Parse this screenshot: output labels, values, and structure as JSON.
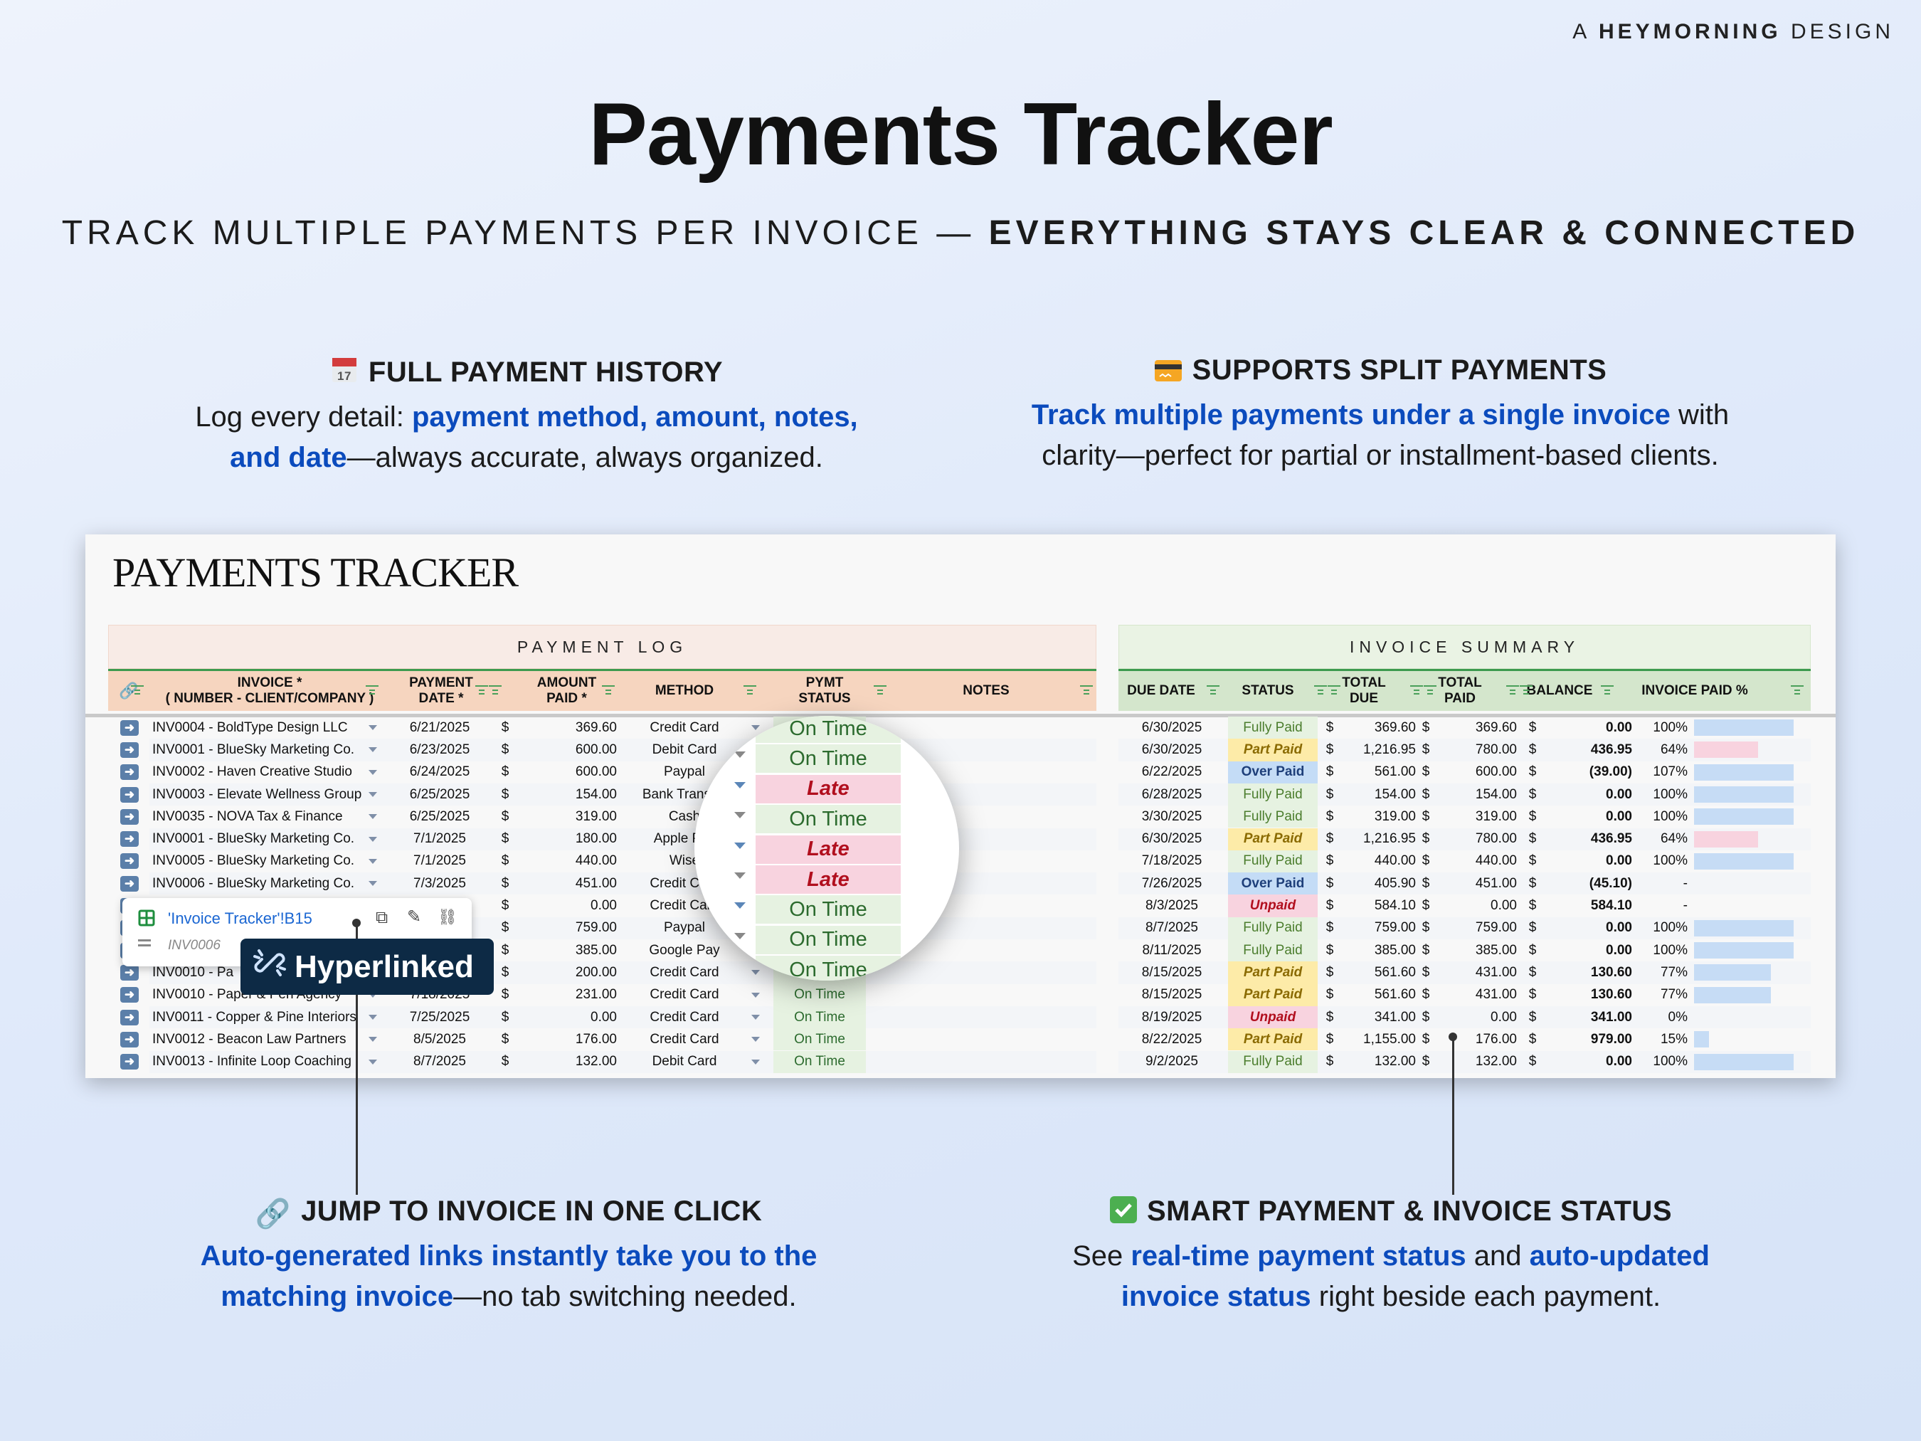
{
  "brand": {
    "prefix": "A",
    "name": "HEYMORNING",
    "suffix": "DESIGN"
  },
  "title": "Payments Tracker",
  "subtitle": {
    "regular": "TRACK MULTIPLE PAYMENTS PER INVOICE —",
    "bold": "EVERYTHING STAYS CLEAR & CONNECTED"
  },
  "features": {
    "history": {
      "icon": "calendar-icon",
      "heading": "FULL PAYMENT HISTORY",
      "t1": "Log every detail: ",
      "h1": "payment method, amount, notes,",
      "h2": "and date",
      "t2": "—always accurate, always organized."
    },
    "split": {
      "icon": "credit-card-icon",
      "heading": "SUPPORTS SPLIT PAYMENTS",
      "h1": "Track multiple payments under a single invoice",
      "t1": " with",
      "t2": "clarity—perfect for partial or installment-based clients."
    },
    "jump": {
      "icon": "link-icon",
      "heading": "JUMP TO INVOICE IN ONE CLICK",
      "h1": "Auto-generated links instantly take you to the",
      "h2": "matching invoice",
      "t1": "—no tab switching needed."
    },
    "status": {
      "icon": "check-mark-icon",
      "heading": "SMART PAYMENT & INVOICE STATUS",
      "t1": "See ",
      "h1": "real-time payment status",
      "t2": " and ",
      "h2": "auto-updated",
      "h3": "invoice status",
      "t3": " right beside each payment."
    }
  },
  "sheet": {
    "title": "PAYMENTS TRACKER",
    "payment_log_label": "PAYMENT LOG",
    "invoice_summary_label": "INVOICE SUMMARY",
    "columns": {
      "invoice": [
        "INVOICE *",
        "( NUMBER - CLIENT/COMPANY )"
      ],
      "payment_date": [
        "PAYMENT",
        "DATE *"
      ],
      "amount_paid": [
        "AMOUNT",
        "PAID *"
      ],
      "method": "METHOD",
      "pymt_status": [
        "PYMT",
        "STATUS"
      ],
      "notes": "NOTES",
      "due_date": "DUE DATE",
      "status": "STATUS",
      "total_due": [
        "TOTAL",
        "DUE"
      ],
      "total_paid": [
        "TOTAL",
        "PAID"
      ],
      "balance": "BALANCE",
      "invoice_paid_pct": "INVOICE PAID %"
    },
    "currency": "$",
    "colors": {
      "on_time": "#2c6b2e",
      "late": "#b10f1e",
      "bar_blue": "#c6dcf5",
      "bar_pink": "#f8d3df",
      "header_green": "#3c9a4e"
    },
    "rows": [
      {
        "invoice": "INV0004 - BoldType Design LLC",
        "date": "6/21/2025",
        "amount": "369.60",
        "method": "Credit Card",
        "pymt_status": "On Time",
        "due": "6/30/2025",
        "status": "Fully Paid",
        "total_due": "369.60",
        "total_paid": "369.60",
        "balance": "0.00",
        "pct": "100%",
        "bar": 1.0,
        "bar_tone": "blue"
      },
      {
        "invoice": "INV0001 - BlueSky Marketing Co.",
        "date": "6/23/2025",
        "amount": "600.00",
        "method": "Debit Card",
        "pymt_status": "On Time",
        "due": "6/30/2025",
        "status": "Part Paid",
        "total_due": "1,216.95",
        "total_paid": "780.00",
        "balance": "436.95",
        "pct": "64%",
        "bar": 0.64,
        "bar_tone": "pink"
      },
      {
        "invoice": "INV0002 - Haven Creative Studio",
        "date": "6/24/2025",
        "amount": "600.00",
        "method": "Paypal",
        "pymt_status": "Late",
        "due": "6/22/2025",
        "status": "Over Paid",
        "total_due": "561.00",
        "total_paid": "600.00",
        "balance": "(39.00)",
        "pct": "107%",
        "bar": 1.0,
        "bar_tone": "blue"
      },
      {
        "invoice": "INV0003 - Elevate Wellness Group",
        "date": "6/25/2025",
        "amount": "154.00",
        "method": "Bank Transfer",
        "pymt_status": "On Time",
        "due": "6/28/2025",
        "status": "Fully Paid",
        "total_due": "154.00",
        "total_paid": "154.00",
        "balance": "0.00",
        "pct": "100%",
        "bar": 1.0,
        "bar_tone": "blue"
      },
      {
        "invoice": "INV0035 - NOVA Tax & Finance",
        "date": "6/25/2025",
        "amount": "319.00",
        "method": "Cash",
        "pymt_status": "Late",
        "due": "3/30/2025",
        "status": "Fully Paid",
        "total_due": "319.00",
        "total_paid": "319.00",
        "balance": "0.00",
        "pct": "100%",
        "bar": 1.0,
        "bar_tone": "blue"
      },
      {
        "invoice": "INV0001 - BlueSky Marketing Co.",
        "date": "7/1/2025",
        "amount": "180.00",
        "method": "Apple Pay",
        "pymt_status": "Late",
        "due": "6/30/2025",
        "status": "Part Paid",
        "total_due": "1,216.95",
        "total_paid": "780.00",
        "balance": "436.95",
        "pct": "64%",
        "bar": 0.64,
        "bar_tone": "pink"
      },
      {
        "invoice": "INV0005 - BlueSky Marketing Co.",
        "date": "7/1/2025",
        "amount": "440.00",
        "method": "Wise",
        "pymt_status": "On Time",
        "due": "7/18/2025",
        "status": "Fully Paid",
        "total_due": "440.00",
        "total_paid": "440.00",
        "balance": "0.00",
        "pct": "100%",
        "bar": 1.0,
        "bar_tone": "blue"
      },
      {
        "invoice": "INV0006 - BlueSky Marketing Co.",
        "date": "7/3/2025",
        "amount": "451.00",
        "method": "Credit Card",
        "pymt_status": "On Time",
        "due": "7/26/2025",
        "status": "Over Paid",
        "total_due": "405.90",
        "total_paid": "451.00",
        "balance": "(45.10)",
        "pct": "-",
        "bar": 0,
        "bar_tone": "blue"
      },
      {
        "invoice": "",
        "date": "",
        "amount": "0.00",
        "method": "Credit Card",
        "pymt_status": "On Time",
        "due": "8/3/2025",
        "status": "Unpaid",
        "total_due": "584.10",
        "total_paid": "0.00",
        "balance": "584.10",
        "pct": "-",
        "bar": 0,
        "bar_tone": "blue"
      },
      {
        "invoice": "",
        "date": "",
        "amount": "759.00",
        "method": "Paypal",
        "pymt_status": "On Time",
        "due": "8/7/2025",
        "status": "Fully Paid",
        "total_due": "759.00",
        "total_paid": "759.00",
        "balance": "0.00",
        "pct": "100%",
        "bar": 1.0,
        "bar_tone": "blue"
      },
      {
        "invoice": "",
        "date": "",
        "amount": "385.00",
        "method": "Google Pay",
        "pymt_status": "On Time",
        "due": "8/11/2025",
        "status": "Fully Paid",
        "total_due": "385.00",
        "total_paid": "385.00",
        "balance": "0.00",
        "pct": "100%",
        "bar": 1.0,
        "bar_tone": "blue"
      },
      {
        "invoice": "INV0010 - Pa",
        "date": "",
        "amount": "200.00",
        "method": "Credit Card",
        "pymt_status": "On Time",
        "due": "8/15/2025",
        "status": "Part Paid",
        "total_due": "561.60",
        "total_paid": "431.00",
        "balance": "130.60",
        "pct": "77%",
        "bar": 0.77,
        "bar_tone": "blue"
      },
      {
        "invoice": "INV0010 - Paper & Pen Agency",
        "date": "7/18/2025",
        "amount": "231.00",
        "method": "Credit Card",
        "pymt_status": "On Time",
        "due": "8/15/2025",
        "status": "Part Paid",
        "total_due": "561.60",
        "total_paid": "431.00",
        "balance": "130.60",
        "pct": "77%",
        "bar": 0.77,
        "bar_tone": "blue"
      },
      {
        "invoice": "INV0011 - Copper & Pine Interiors",
        "date": "7/25/2025",
        "amount": "0.00",
        "method": "Credit Card",
        "pymt_status": "On Time",
        "due": "8/19/2025",
        "status": "Unpaid",
        "total_due": "341.00",
        "total_paid": "0.00",
        "balance": "341.00",
        "pct": "0%",
        "bar": 0,
        "bar_tone": "blue"
      },
      {
        "invoice": "INV0012 - Beacon Law Partners",
        "date": "8/5/2025",
        "amount": "176.00",
        "method": "Credit Card",
        "pymt_status": "On Time",
        "due": "8/22/2025",
        "status": "Part Paid",
        "total_due": "1,155.00",
        "total_paid": "176.00",
        "balance": "979.00",
        "pct": "15%",
        "bar": 0.15,
        "bar_tone": "blue"
      },
      {
        "invoice": "INV0013 - Infinite Loop Coaching",
        "date": "8/7/2025",
        "amount": "132.00",
        "method": "Debit Card",
        "pymt_status": "On Time",
        "due": "9/2/2025",
        "status": "Fully Paid",
        "total_due": "132.00",
        "total_paid": "132.00",
        "balance": "0.00",
        "pct": "100%",
        "bar": 1.0,
        "bar_tone": "blue"
      }
    ]
  },
  "magnifier": {
    "statuses": [
      "On Time",
      "On Time",
      "Late",
      "On Time",
      "Late",
      "Late",
      "On Time",
      "On Time",
      "On Time"
    ]
  },
  "link_popup": {
    "reference": "'Invoice Tracker'!B15",
    "label": "INV0006",
    "icons": [
      "sheets-grid-icon",
      "copy-icon",
      "edit-icon",
      "unlink-icon"
    ]
  },
  "badge": {
    "label": "Hyperlinked",
    "icon": "broken-link-icon"
  }
}
